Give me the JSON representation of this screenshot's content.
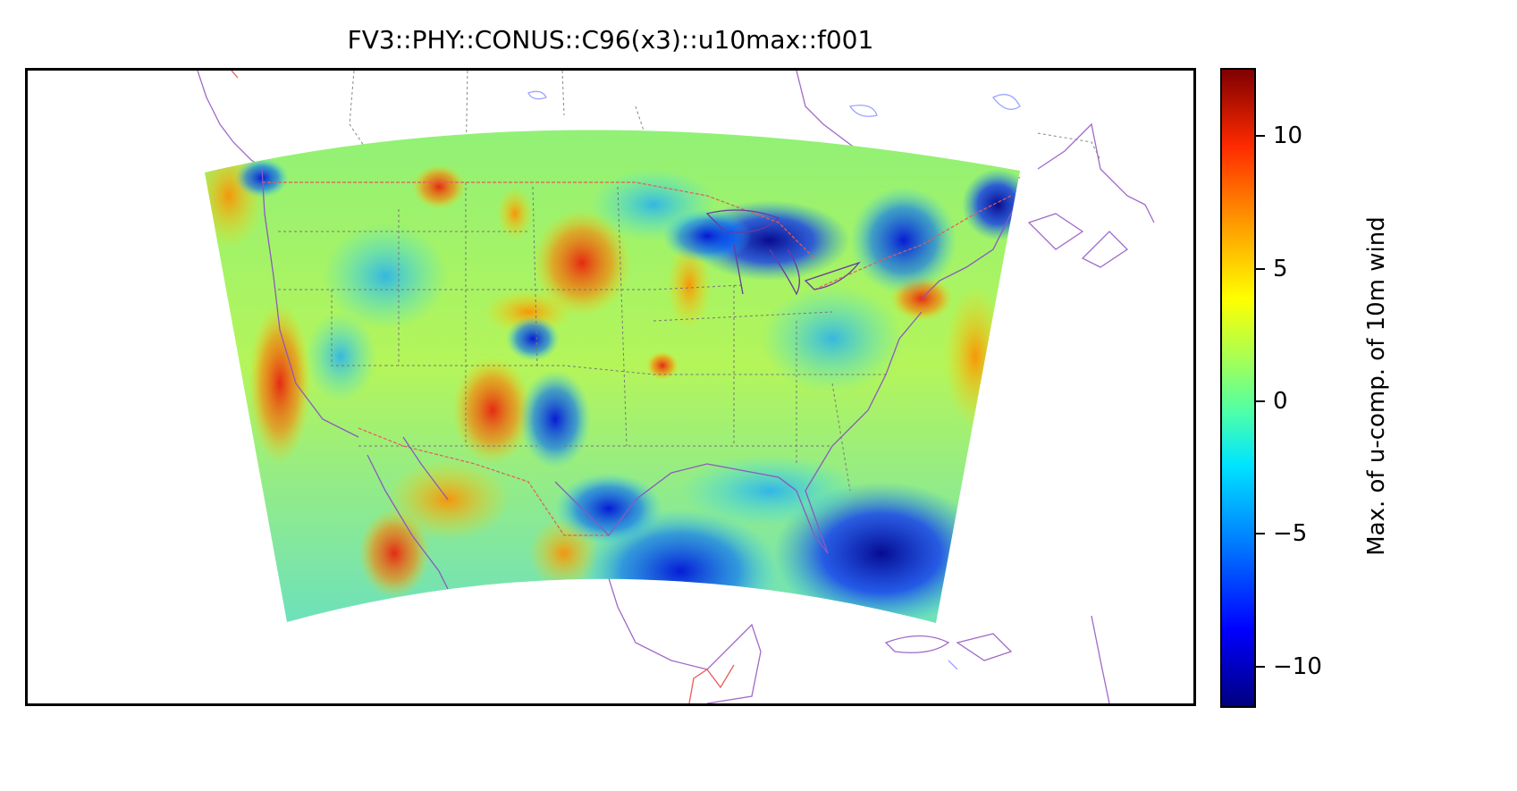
{
  "title": "FV3::PHY::CONUS::C96(x3)::u10max::f001",
  "colorbar": {
    "label": "Max. of u-comp. of 10m wind",
    "ticks": [
      {
        "value": 10,
        "label": "10"
      },
      {
        "value": 5,
        "label": "5"
      },
      {
        "value": 0,
        "label": "0"
      },
      {
        "value": -5,
        "label": "−5"
      },
      {
        "value": -10,
        "label": "−10"
      }
    ],
    "range": [
      -11.5,
      12.5
    ],
    "colormap": "jet"
  },
  "colors": {
    "coastline": "#a06ac8",
    "state_border": "#777777",
    "country_border": "#e85a5a",
    "lakes": "#9aa6ff"
  }
}
